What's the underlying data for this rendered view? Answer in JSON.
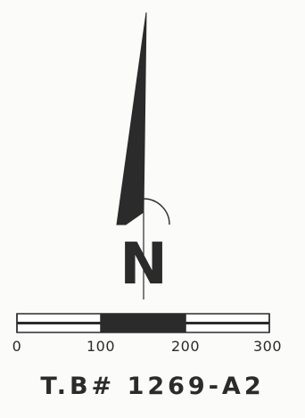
{
  "north_arrow": {
    "letter": "N"
  },
  "scale_bar": {
    "segments": [
      {
        "fill": "#ffffff"
      },
      {
        "fill": "#2b2b2b"
      },
      {
        "fill": "#ffffff"
      }
    ],
    "labels": [
      "0",
      "100",
      "200",
      "300"
    ]
  },
  "sheet": {
    "id": "T.B# 1269-A2"
  },
  "colors": {
    "ink": "#2b2b2b",
    "paper": "#fbfbf9"
  }
}
